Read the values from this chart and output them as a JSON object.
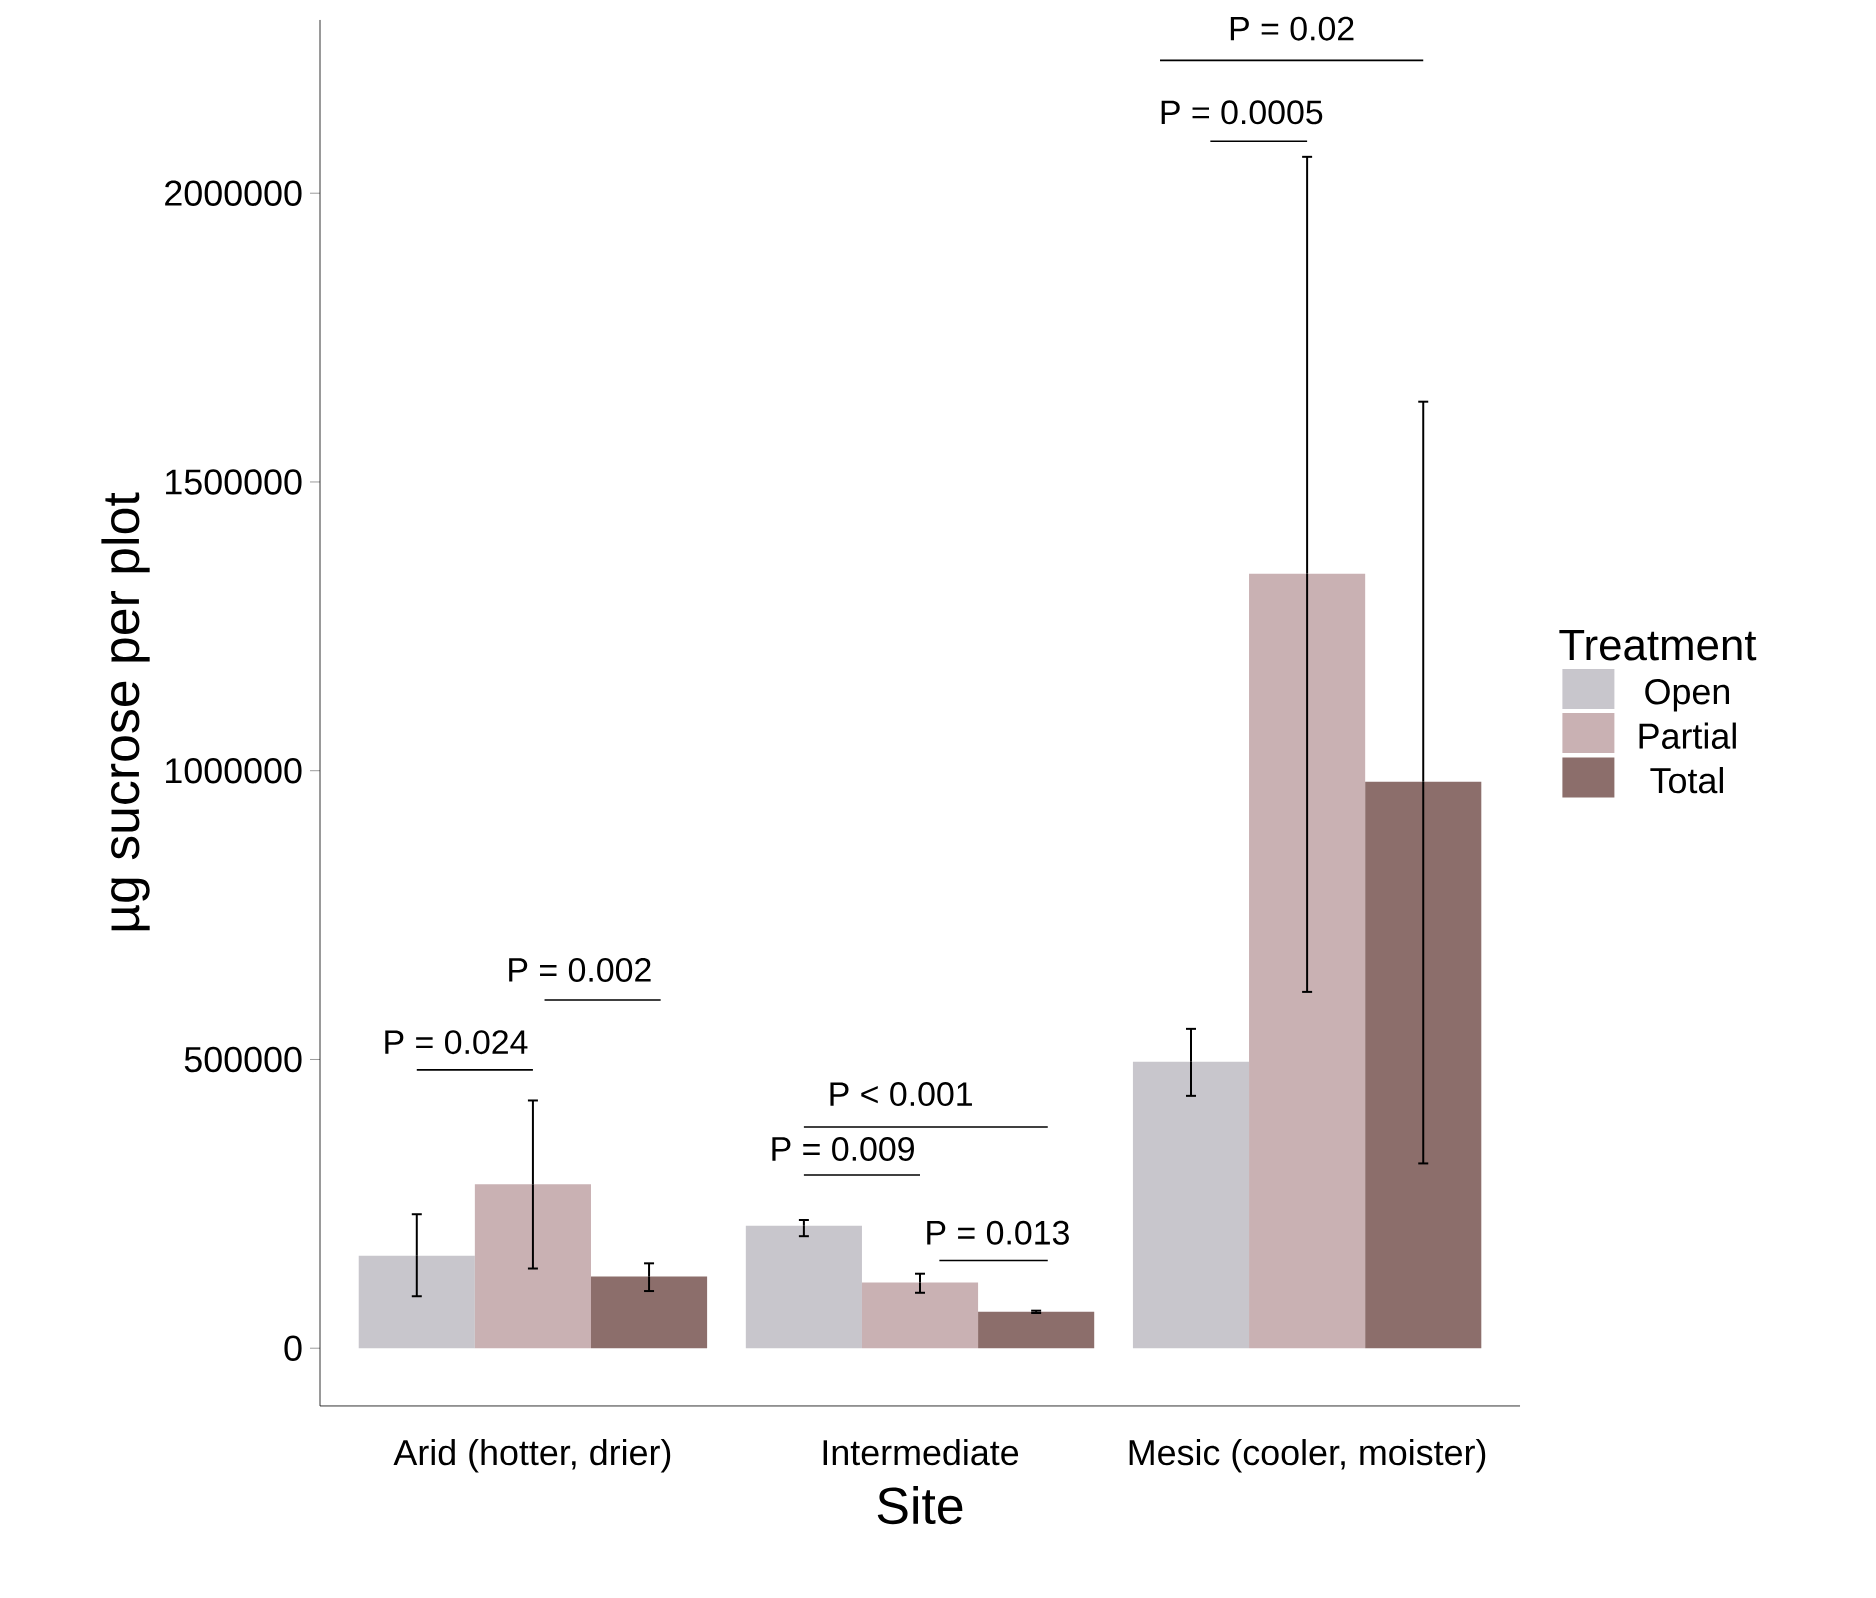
{
  "chart_data": {
    "type": "bar",
    "xlabel": "Site",
    "ylabel": "µg sucrose per plot",
    "legend_title": "Treatment",
    "legend": "right",
    "categories": [
      "Arid (hotter, drier)",
      "Intermediate",
      "Mesic (cooler, moister)"
    ],
    "ylim": [
      -100000,
      2300000
    ],
    "yticks": [
      0,
      500000,
      1000000,
      1500000,
      2000000
    ],
    "grid": false,
    "series": [
      {
        "name": "Open",
        "color": "#c8c6cc",
        "values": [
          160000,
          212000,
          496000
        ],
        "errors": [
          [
            90000,
            232000
          ],
          [
            194000,
            222000
          ],
          [
            437000,
            553000
          ]
        ]
      },
      {
        "name": "Partial",
        "color": "#c9b1b3",
        "values": [
          284000,
          114000,
          1341000
        ],
        "errors": [
          [
            138000,
            429000
          ],
          [
            96000,
            129000
          ],
          [
            617000,
            2063000
          ]
        ]
      },
      {
        "name": "Total",
        "color": "#8c6e6b",
        "values": [
          124000,
          63000,
          981000
        ],
        "errors": [
          [
            99000,
            147000
          ],
          [
            61000,
            65000
          ],
          [
            320000,
            1639000
          ]
        ]
      }
    ],
    "annotations": [
      "P = 0.024",
      "P = 0.002",
      "P < 0.001",
      "P = 0.009",
      "P = 0.013",
      "P = 0.0005",
      "P = 0.02"
    ]
  }
}
